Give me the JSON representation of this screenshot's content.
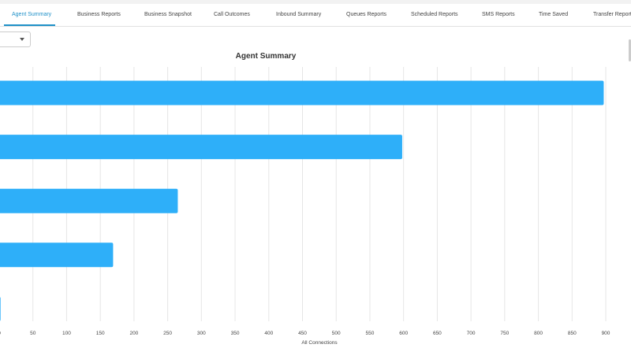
{
  "tabs": [
    {
      "label": "Agent Summary",
      "active": true
    },
    {
      "label": "Business Reports"
    },
    {
      "label": "Business Snapshot"
    },
    {
      "label": "Call Outcomes"
    },
    {
      "label": "Inbound Summary"
    },
    {
      "label": "Queues Reports"
    },
    {
      "label": "Scheduled Reports"
    },
    {
      "label": "SMS Reports"
    },
    {
      "label": "Time Saved"
    },
    {
      "label": "Transfer Reports"
    }
  ],
  "dropdown": {
    "value": ""
  },
  "chart_data": {
    "type": "bar",
    "orientation": "horizontal",
    "title": "Agent Summary",
    "xlabel": "All Connections",
    "ylabel": "",
    "xlim": [
      0,
      900
    ],
    "xticks": [
      "0",
      "50",
      "100",
      "150",
      "200",
      "250",
      "300",
      "350",
      "400",
      "450",
      "500",
      "550",
      "600",
      "650",
      "700",
      "750",
      "800",
      "850",
      "900"
    ],
    "categories": [
      "",
      "",
      "",
      "",
      ""
    ],
    "values": [
      897,
      598,
      265,
      169,
      2
    ],
    "grid": true,
    "bar_color": "#2eaff9"
  }
}
